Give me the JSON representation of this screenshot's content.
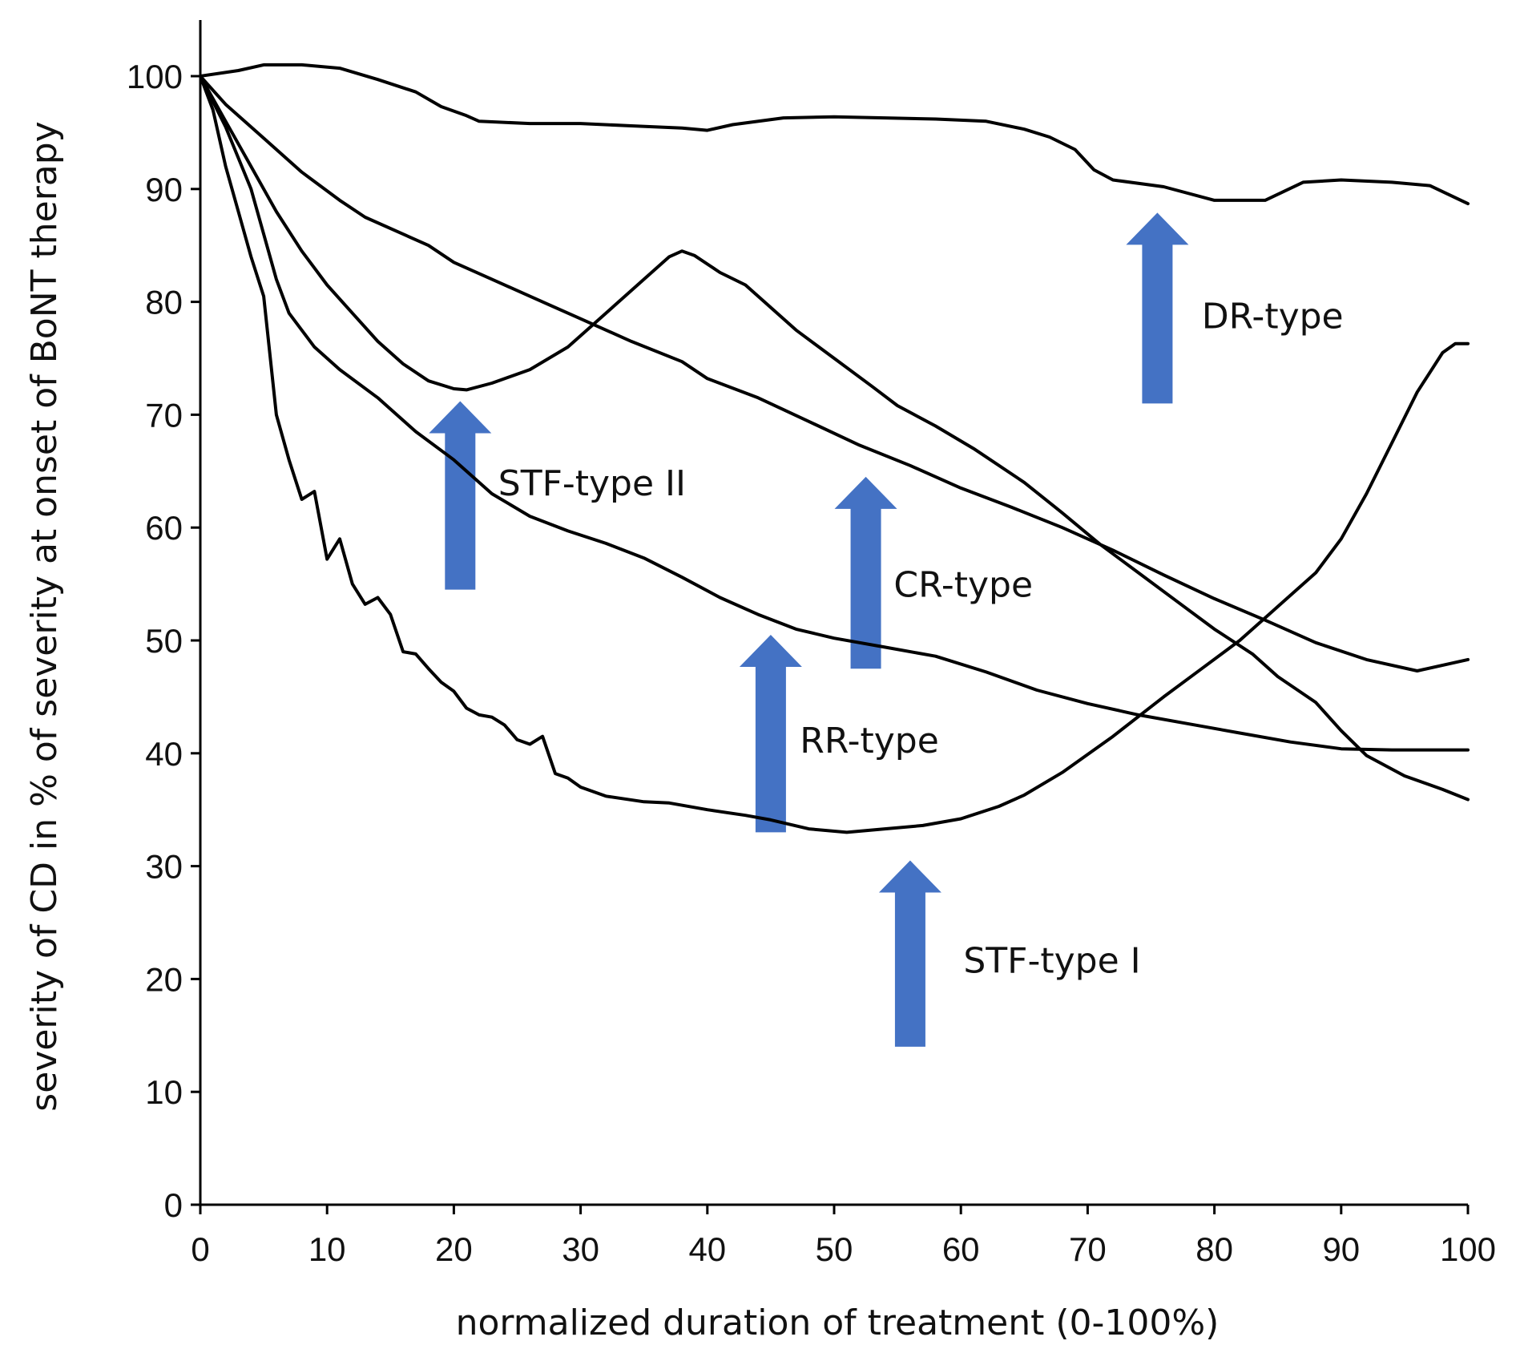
{
  "chart_data": {
    "type": "line",
    "title": "",
    "xlabel": "normalized duration of treatment (0-100%)",
    "ylabel": "severity of CD in % of severity at onset of BoNT therapy",
    "xlim": [
      0,
      100
    ],
    "ylim": [
      0,
      100
    ],
    "xticks": [
      0,
      10,
      20,
      30,
      40,
      50,
      60,
      70,
      80,
      90,
      100
    ],
    "yticks": [
      0,
      10,
      20,
      30,
      40,
      50,
      60,
      70,
      80,
      90,
      100
    ],
    "grid": false,
    "series": [
      {
        "name": "DR-type",
        "points": [
          [
            0,
            100
          ],
          [
            3,
            100.5
          ],
          [
            5,
            101
          ],
          [
            8,
            101
          ],
          [
            11,
            100.7
          ],
          [
            14,
            99.7
          ],
          [
            17,
            98.6
          ],
          [
            19,
            97.3
          ],
          [
            21,
            96.5
          ],
          [
            22,
            96
          ],
          [
            26,
            95.8
          ],
          [
            30,
            95.8
          ],
          [
            34,
            95.6
          ],
          [
            38,
            95.4
          ],
          [
            40,
            95.2
          ],
          [
            42,
            95.7
          ],
          [
            46,
            96.3
          ],
          [
            50,
            96.4
          ],
          [
            54,
            96.3
          ],
          [
            58,
            96.2
          ],
          [
            62,
            96
          ],
          [
            65,
            95.3
          ],
          [
            67,
            94.6
          ],
          [
            69,
            93.5
          ],
          [
            70.5,
            91.7
          ],
          [
            72,
            90.8
          ],
          [
            76,
            90.2
          ],
          [
            80,
            89
          ],
          [
            84,
            89
          ],
          [
            87,
            90.6
          ],
          [
            90,
            90.8
          ],
          [
            94,
            90.6
          ],
          [
            97,
            90.3
          ],
          [
            100,
            88.7
          ]
        ]
      },
      {
        "name": "CR-type",
        "points": [
          [
            0,
            100
          ],
          [
            2,
            97.5
          ],
          [
            5,
            94.5
          ],
          [
            8,
            91.5
          ],
          [
            11,
            89
          ],
          [
            13,
            87.5
          ],
          [
            16,
            86
          ],
          [
            18,
            85
          ],
          [
            20,
            83.5
          ],
          [
            23,
            82
          ],
          [
            26,
            80.5
          ],
          [
            30,
            78.5
          ],
          [
            34,
            76.5
          ],
          [
            38,
            74.7
          ],
          [
            40,
            73.2
          ],
          [
            44,
            71.5
          ],
          [
            48,
            69.4
          ],
          [
            52,
            67.3
          ],
          [
            56,
            65.5
          ],
          [
            60,
            63.5
          ],
          [
            64,
            61.8
          ],
          [
            68,
            60
          ],
          [
            72,
            58
          ],
          [
            76,
            55.8
          ],
          [
            80,
            53.7
          ],
          [
            84,
            51.8
          ],
          [
            88,
            49.8
          ],
          [
            92,
            48.3
          ],
          [
            96,
            47.3
          ],
          [
            100,
            48.3
          ]
        ]
      },
      {
        "name": "STF-type II",
        "points": [
          [
            0,
            100
          ],
          [
            2,
            96
          ],
          [
            4,
            92
          ],
          [
            6,
            88
          ],
          [
            8,
            84.5
          ],
          [
            10,
            81.5
          ],
          [
            12,
            79
          ],
          [
            14,
            76.5
          ],
          [
            16,
            74.5
          ],
          [
            18,
            73
          ],
          [
            20,
            72.3
          ],
          [
            21,
            72.2
          ],
          [
            23,
            72.8
          ],
          [
            26,
            74
          ],
          [
            29,
            76
          ],
          [
            32,
            79
          ],
          [
            35,
            82
          ],
          [
            37,
            84
          ],
          [
            38,
            84.5
          ],
          [
            39,
            84.1
          ],
          [
            41,
            82.6
          ],
          [
            43,
            81.5
          ],
          [
            45,
            79.5
          ],
          [
            47,
            77.5
          ],
          [
            50,
            75
          ],
          [
            53,
            72.5
          ],
          [
            55,
            70.8
          ],
          [
            58,
            69
          ],
          [
            61,
            67
          ],
          [
            65,
            64
          ],
          [
            68,
            61.3
          ],
          [
            71,
            58.5
          ],
          [
            74,
            56
          ],
          [
            77,
            53.5
          ],
          [
            80,
            51
          ],
          [
            83,
            48.8
          ],
          [
            85,
            46.8
          ],
          [
            88,
            44.5
          ],
          [
            90,
            42
          ],
          [
            92,
            39.8
          ],
          [
            95,
            38
          ],
          [
            98,
            36.8
          ],
          [
            100,
            35.9
          ]
        ]
      },
      {
        "name": "RR-type",
        "points": [
          [
            0,
            100
          ],
          [
            2,
            95.5
          ],
          [
            4,
            90
          ],
          [
            5,
            86
          ],
          [
            6,
            82
          ],
          [
            7,
            79
          ],
          [
            9,
            76
          ],
          [
            11,
            74
          ],
          [
            14,
            71.5
          ],
          [
            17,
            68.5
          ],
          [
            20,
            66
          ],
          [
            23,
            63
          ],
          [
            26,
            61
          ],
          [
            29,
            59.7
          ],
          [
            32,
            58.6
          ],
          [
            35,
            57.3
          ],
          [
            38,
            55.6
          ],
          [
            41,
            53.8
          ],
          [
            44,
            52.3
          ],
          [
            47,
            51
          ],
          [
            50,
            50.2
          ],
          [
            54,
            49.4
          ],
          [
            58,
            48.6
          ],
          [
            62,
            47.2
          ],
          [
            66,
            45.6
          ],
          [
            70,
            44.4
          ],
          [
            74,
            43.4
          ],
          [
            78,
            42.6
          ],
          [
            82,
            41.8
          ],
          [
            86,
            41
          ],
          [
            90,
            40.4
          ],
          [
            94,
            40.3
          ],
          [
            100,
            40.3
          ]
        ]
      },
      {
        "name": "STF-type I",
        "points": [
          [
            0,
            100
          ],
          [
            1,
            97
          ],
          [
            2,
            92
          ],
          [
            3,
            88
          ],
          [
            4,
            84
          ],
          [
            5,
            80.5
          ],
          [
            6,
            70
          ],
          [
            7,
            66
          ],
          [
            8,
            62.5
          ],
          [
            9,
            63.2
          ],
          [
            10,
            57.2
          ],
          [
            11,
            59
          ],
          [
            12,
            55
          ],
          [
            13,
            53.2
          ],
          [
            14,
            53.8
          ],
          [
            15,
            52.3
          ],
          [
            16,
            49
          ],
          [
            17,
            48.8
          ],
          [
            18,
            47.5
          ],
          [
            19,
            46.3
          ],
          [
            20,
            45.5
          ],
          [
            21,
            44
          ],
          [
            22,
            43.4
          ],
          [
            23,
            43.2
          ],
          [
            24,
            42.5
          ],
          [
            25,
            41.2
          ],
          [
            26,
            40.8
          ],
          [
            27,
            41.5
          ],
          [
            28,
            38.2
          ],
          [
            29,
            37.8
          ],
          [
            30,
            37
          ],
          [
            32,
            36.2
          ],
          [
            35,
            35.7
          ],
          [
            37,
            35.6
          ],
          [
            40,
            35
          ],
          [
            43,
            34.5
          ],
          [
            45,
            34.1
          ],
          [
            48,
            33.3
          ],
          [
            51,
            33
          ],
          [
            54,
            33.3
          ],
          [
            57,
            33.6
          ],
          [
            60,
            34.2
          ],
          [
            63,
            35.3
          ],
          [
            65,
            36.3
          ],
          [
            68,
            38.3
          ],
          [
            72,
            41.5
          ],
          [
            76,
            45
          ],
          [
            79,
            47.5
          ],
          [
            82,
            50
          ],
          [
            85,
            53
          ],
          [
            88,
            56
          ],
          [
            90,
            59
          ],
          [
            92,
            63
          ],
          [
            94,
            67.5
          ],
          [
            96,
            72
          ],
          [
            98,
            75.5
          ],
          [
            99,
            76.3
          ],
          [
            100,
            76.3
          ]
        ]
      }
    ],
    "annotations": [
      {
        "label": "DR-type",
        "arrow_x": 75.5,
        "arrow_y": [
          71,
          87.9
        ],
        "text_x": 79,
        "text_y": 78.8
      },
      {
        "label": "STF-type II",
        "arrow_x": 20.5,
        "arrow_y": [
          54.5,
          71.2
        ],
        "text_x": 23.5,
        "text_y": 64
      },
      {
        "label": "CR-type",
        "arrow_x": 52.5,
        "arrow_y": [
          47.5,
          64.5
        ],
        "text_x": 54.7,
        "text_y": 55
      },
      {
        "label": "RR-type",
        "arrow_x": 45,
        "arrow_y": [
          33,
          50.5
        ],
        "text_x": 47.3,
        "text_y": 41.2
      },
      {
        "label": "STF-type I",
        "arrow_x": 56,
        "arrow_y": [
          14,
          30.5
        ],
        "text_x": 60.2,
        "text_y": 21.7
      }
    ],
    "arrow_color": "#4472C4"
  }
}
